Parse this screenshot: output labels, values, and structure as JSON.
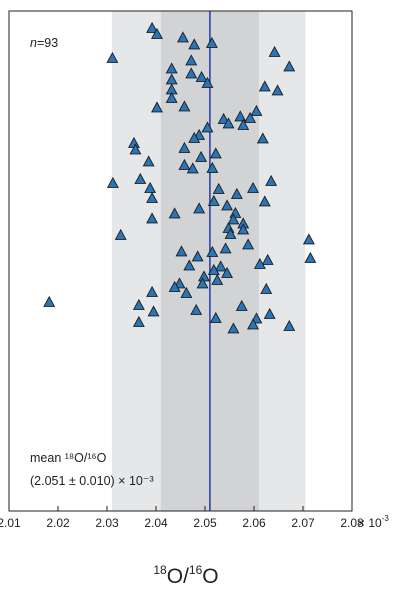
{
  "chart_data": {
    "type": "scatter",
    "n_label": {
      "italic": "n",
      "rest": "=93"
    },
    "xlabel": {
      "parts": [
        {
          "sup": "18"
        },
        {
          "text": "O/"
        },
        {
          "sup": "16"
        },
        {
          "text": "O"
        }
      ]
    },
    "x_multiplier": "× 10",
    "x_multiplier_exp": "-3",
    "xlim": [
      2.01,
      2.08
    ],
    "x_ticks": [
      2.01,
      2.02,
      2.03,
      2.04,
      2.05,
      2.06,
      2.07,
      2.08
    ],
    "x_tick_labels": [
      "2.01",
      "2.02",
      "2.03",
      "2.04",
      "2.05",
      "2.06",
      "2.07",
      "2.08"
    ],
    "ylim": [
      0,
      100
    ],
    "mean": 2.051,
    "sd": 0.01,
    "annotation_line1": "mean ¹⁸O/¹⁶O",
    "annotation_line2": "(2.051 ± 0.010) × 10⁻³",
    "colors": {
      "outer_band": "#e6e7e8",
      "inner_band": "#d2d3d5",
      "mean_line": "#2c45a8",
      "marker_fill": "#2a74b8",
      "marker_stroke": "#1a1a1a"
    },
    "bands": [
      {
        "name": "2sd",
        "x": [
          2.031,
          2.0705
        ]
      },
      {
        "name": "1sd",
        "x": [
          2.041,
          2.061
        ]
      }
    ],
    "marker": "triangle",
    "points": [
      {
        "x": 2.0392,
        "y": 96.6
      },
      {
        "x": 2.0402,
        "y": 95.4
      },
      {
        "x": 2.0455,
        "y": 94.7
      },
      {
        "x": 2.0478,
        "y": 93.3
      },
      {
        "x": 2.0514,
        "y": 93.6
      },
      {
        "x": 2.0642,
        "y": 91.8
      },
      {
        "x": 2.0311,
        "y": 90.6
      },
      {
        "x": 2.0472,
        "y": 90.1
      },
      {
        "x": 2.0672,
        "y": 88.9
      },
      {
        "x": 2.0432,
        "y": 88.5
      },
      {
        "x": 2.0472,
        "y": 87.5
      },
      {
        "x": 2.0432,
        "y": 86.3
      },
      {
        "x": 2.0493,
        "y": 86.8
      },
      {
        "x": 2.0505,
        "y": 85.6
      },
      {
        "x": 2.0432,
        "y": 84.3
      },
      {
        "x": 2.0622,
        "y": 84.9
      },
      {
        "x": 2.0648,
        "y": 84.1
      },
      {
        "x": 2.0432,
        "y": 82.6
      },
      {
        "x": 2.0402,
        "y": 80.7
      },
      {
        "x": 2.0458,
        "y": 80.9
      },
      {
        "x": 2.0605,
        "y": 80.0
      },
      {
        "x": 2.0538,
        "y": 78.4
      },
      {
        "x": 2.0572,
        "y": 78.9
      },
      {
        "x": 2.0592,
        "y": 78.6
      },
      {
        "x": 2.0548,
        "y": 77.5
      },
      {
        "x": 2.0578,
        "y": 77.2
      },
      {
        "x": 2.0505,
        "y": 76.7
      },
      {
        "x": 2.0488,
        "y": 75.2
      },
      {
        "x": 2.0478,
        "y": 74.6
      },
      {
        "x": 2.0618,
        "y": 74.5
      },
      {
        "x": 2.0355,
        "y": 73.6
      },
      {
        "x": 2.0358,
        "y": 72.3
      },
      {
        "x": 2.0458,
        "y": 72.6
      },
      {
        "x": 2.0522,
        "y": 71.5
      },
      {
        "x": 2.0492,
        "y": 70.8
      },
      {
        "x": 2.0385,
        "y": 69.9
      },
      {
        "x": 2.0458,
        "y": 69.2
      },
      {
        "x": 2.0475,
        "y": 68.5
      },
      {
        "x": 2.0515,
        "y": 68.6
      },
      {
        "x": 2.0368,
        "y": 66.4
      },
      {
        "x": 2.0312,
        "y": 65.6
      },
      {
        "x": 2.0635,
        "y": 66.0
      },
      {
        "x": 2.0388,
        "y": 64.6
      },
      {
        "x": 2.0528,
        "y": 64.4
      },
      {
        "x": 2.0598,
        "y": 64.6
      },
      {
        "x": 2.0565,
        "y": 63.4
      },
      {
        "x": 2.0392,
        "y": 62.6
      },
      {
        "x": 2.0518,
        "y": 62.0
      },
      {
        "x": 2.0622,
        "y": 61.9
      },
      {
        "x": 2.0545,
        "y": 61.1
      },
      {
        "x": 2.0488,
        "y": 60.5
      },
      {
        "x": 2.0438,
        "y": 59.5
      },
      {
        "x": 2.0562,
        "y": 59.6
      },
      {
        "x": 2.0392,
        "y": 58.5
      },
      {
        "x": 2.0558,
        "y": 58.3
      },
      {
        "x": 2.0578,
        "y": 57.5
      },
      {
        "x": 2.0548,
        "y": 56.6
      },
      {
        "x": 2.0578,
        "y": 56.3
      },
      {
        "x": 2.0328,
        "y": 55.2
      },
      {
        "x": 2.0552,
        "y": 55.4
      },
      {
        "x": 2.0712,
        "y": 54.3
      },
      {
        "x": 2.0588,
        "y": 53.3
      },
      {
        "x": 2.0542,
        "y": 52.5
      },
      {
        "x": 2.0452,
        "y": 51.9
      },
      {
        "x": 2.0515,
        "y": 51.8
      },
      {
        "x": 2.0485,
        "y": 50.9
      },
      {
        "x": 2.0628,
        "y": 50.2
      },
      {
        "x": 2.0715,
        "y": 50.6
      },
      {
        "x": 2.0612,
        "y": 49.4
      },
      {
        "x": 2.0468,
        "y": 49.1
      },
      {
        "x": 2.0532,
        "y": 48.9
      },
      {
        "x": 2.0518,
        "y": 48.2
      },
      {
        "x": 2.0545,
        "y": 47.6
      },
      {
        "x": 2.0498,
        "y": 46.9
      },
      {
        "x": 2.0525,
        "y": 46.2
      },
      {
        "x": 2.0448,
        "y": 45.5
      },
      {
        "x": 2.0495,
        "y": 45.5
      },
      {
        "x": 2.0438,
        "y": 44.8
      },
      {
        "x": 2.0625,
        "y": 44.4
      },
      {
        "x": 2.0392,
        "y": 43.8
      },
      {
        "x": 2.0462,
        "y": 43.6
      },
      {
        "x": 2.0182,
        "y": 41.8
      },
      {
        "x": 2.0365,
        "y": 41.2
      },
      {
        "x": 2.0575,
        "y": 41.0
      },
      {
        "x": 2.0482,
        "y": 40.2
      },
      {
        "x": 2.0395,
        "y": 39.9
      },
      {
        "x": 2.0632,
        "y": 39.4
      },
      {
        "x": 2.0522,
        "y": 38.6
      },
      {
        "x": 2.0605,
        "y": 38.5
      },
      {
        "x": 2.0365,
        "y": 37.8
      },
      {
        "x": 2.0598,
        "y": 37.3
      },
      {
        "x": 2.0672,
        "y": 37.0
      },
      {
        "x": 2.0558,
        "y": 36.5
      }
    ]
  }
}
